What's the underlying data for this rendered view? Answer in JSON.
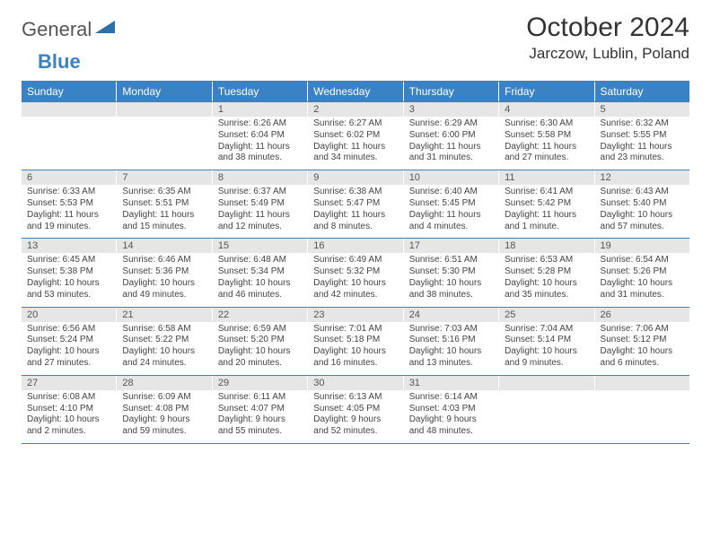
{
  "brand": {
    "part1": "General",
    "part2": "Blue"
  },
  "title": "October 2024",
  "location": "Jarczow, Lublin, Poland",
  "colors": {
    "accent": "#3b82c4",
    "band": "#e6e6e6",
    "text": "#444444",
    "title": "#333333",
    "background": "#ffffff"
  },
  "typography": {
    "title_fontsize": 30,
    "location_fontsize": 17,
    "dow_fontsize": 12,
    "daynum_fontsize": 11,
    "body_fontsize": 10
  },
  "layout": {
    "columns": 7,
    "rows": 5
  },
  "days_of_week": [
    "Sunday",
    "Monday",
    "Tuesday",
    "Wednesday",
    "Thursday",
    "Friday",
    "Saturday"
  ],
  "weeks": [
    [
      {
        "n": "",
        "empty": true
      },
      {
        "n": "",
        "empty": true
      },
      {
        "n": "1",
        "sr": "6:26 AM",
        "ss": "6:04 PM",
        "dl": "11 hours and 38 minutes."
      },
      {
        "n": "2",
        "sr": "6:27 AM",
        "ss": "6:02 PM",
        "dl": "11 hours and 34 minutes."
      },
      {
        "n": "3",
        "sr": "6:29 AM",
        "ss": "6:00 PM",
        "dl": "11 hours and 31 minutes."
      },
      {
        "n": "4",
        "sr": "6:30 AM",
        "ss": "5:58 PM",
        "dl": "11 hours and 27 minutes."
      },
      {
        "n": "5",
        "sr": "6:32 AM",
        "ss": "5:55 PM",
        "dl": "11 hours and 23 minutes."
      }
    ],
    [
      {
        "n": "6",
        "sr": "6:33 AM",
        "ss": "5:53 PM",
        "dl": "11 hours and 19 minutes."
      },
      {
        "n": "7",
        "sr": "6:35 AM",
        "ss": "5:51 PM",
        "dl": "11 hours and 15 minutes."
      },
      {
        "n": "8",
        "sr": "6:37 AM",
        "ss": "5:49 PM",
        "dl": "11 hours and 12 minutes."
      },
      {
        "n": "9",
        "sr": "6:38 AM",
        "ss": "5:47 PM",
        "dl": "11 hours and 8 minutes."
      },
      {
        "n": "10",
        "sr": "6:40 AM",
        "ss": "5:45 PM",
        "dl": "11 hours and 4 minutes."
      },
      {
        "n": "11",
        "sr": "6:41 AM",
        "ss": "5:42 PM",
        "dl": "11 hours and 1 minute."
      },
      {
        "n": "12",
        "sr": "6:43 AM",
        "ss": "5:40 PM",
        "dl": "10 hours and 57 minutes."
      }
    ],
    [
      {
        "n": "13",
        "sr": "6:45 AM",
        "ss": "5:38 PM",
        "dl": "10 hours and 53 minutes."
      },
      {
        "n": "14",
        "sr": "6:46 AM",
        "ss": "5:36 PM",
        "dl": "10 hours and 49 minutes."
      },
      {
        "n": "15",
        "sr": "6:48 AM",
        "ss": "5:34 PM",
        "dl": "10 hours and 46 minutes."
      },
      {
        "n": "16",
        "sr": "6:49 AM",
        "ss": "5:32 PM",
        "dl": "10 hours and 42 minutes."
      },
      {
        "n": "17",
        "sr": "6:51 AM",
        "ss": "5:30 PM",
        "dl": "10 hours and 38 minutes."
      },
      {
        "n": "18",
        "sr": "6:53 AM",
        "ss": "5:28 PM",
        "dl": "10 hours and 35 minutes."
      },
      {
        "n": "19",
        "sr": "6:54 AM",
        "ss": "5:26 PM",
        "dl": "10 hours and 31 minutes."
      }
    ],
    [
      {
        "n": "20",
        "sr": "6:56 AM",
        "ss": "5:24 PM",
        "dl": "10 hours and 27 minutes."
      },
      {
        "n": "21",
        "sr": "6:58 AM",
        "ss": "5:22 PM",
        "dl": "10 hours and 24 minutes."
      },
      {
        "n": "22",
        "sr": "6:59 AM",
        "ss": "5:20 PM",
        "dl": "10 hours and 20 minutes."
      },
      {
        "n": "23",
        "sr": "7:01 AM",
        "ss": "5:18 PM",
        "dl": "10 hours and 16 minutes."
      },
      {
        "n": "24",
        "sr": "7:03 AM",
        "ss": "5:16 PM",
        "dl": "10 hours and 13 minutes."
      },
      {
        "n": "25",
        "sr": "7:04 AM",
        "ss": "5:14 PM",
        "dl": "10 hours and 9 minutes."
      },
      {
        "n": "26",
        "sr": "7:06 AM",
        "ss": "5:12 PM",
        "dl": "10 hours and 6 minutes."
      }
    ],
    [
      {
        "n": "27",
        "sr": "6:08 AM",
        "ss": "4:10 PM",
        "dl": "10 hours and 2 minutes."
      },
      {
        "n": "28",
        "sr": "6:09 AM",
        "ss": "4:08 PM",
        "dl": "9 hours and 59 minutes."
      },
      {
        "n": "29",
        "sr": "6:11 AM",
        "ss": "4:07 PM",
        "dl": "9 hours and 55 minutes."
      },
      {
        "n": "30",
        "sr": "6:13 AM",
        "ss": "4:05 PM",
        "dl": "9 hours and 52 minutes."
      },
      {
        "n": "31",
        "sr": "6:14 AM",
        "ss": "4:03 PM",
        "dl": "9 hours and 48 minutes."
      },
      {
        "n": "",
        "empty": true
      },
      {
        "n": "",
        "empty": true
      }
    ]
  ],
  "labels": {
    "sunrise_prefix": "Sunrise: ",
    "sunset_prefix": "Sunset: ",
    "daylight_prefix": "Daylight: "
  }
}
